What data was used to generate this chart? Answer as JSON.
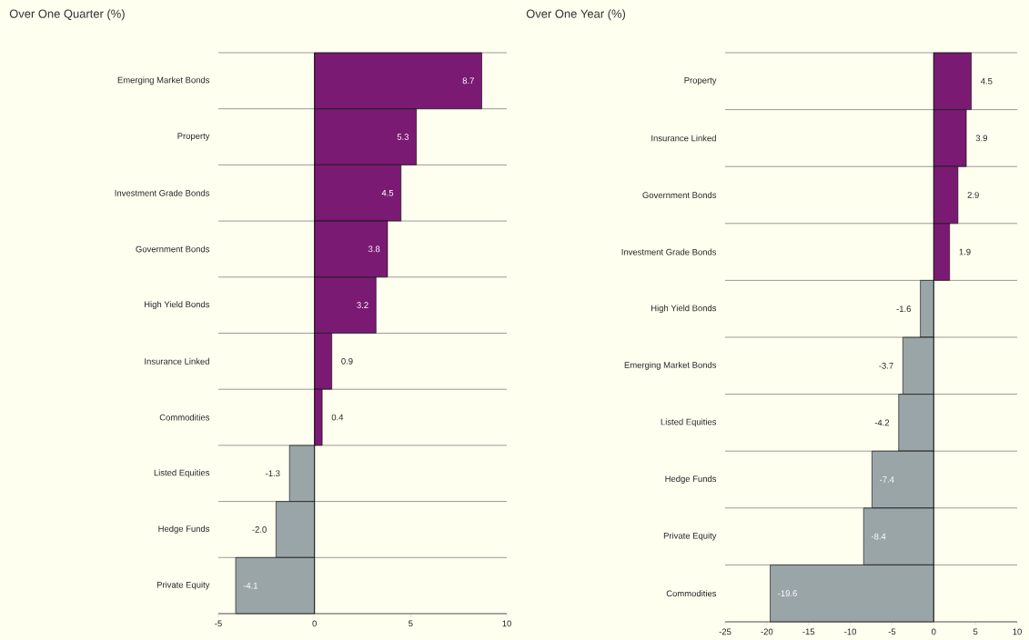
{
  "chart_data": [
    {
      "type": "bar",
      "orientation": "horizontal",
      "title": "Over One Quarter (%)",
      "categories": [
        "Emerging Market Bonds",
        "Property",
        "Investment Grade Bonds",
        "Government Bonds",
        "High Yield Bonds",
        "Insurance Linked",
        "Commodities",
        "Listed Equities",
        "Hedge Funds",
        "Private Equity"
      ],
      "values": [
        8.7,
        5.3,
        4.5,
        3.8,
        3.2,
        0.9,
        0.4,
        -1.3,
        -2.0,
        -4.1
      ],
      "value_labels": [
        "8.7",
        "5.3",
        "4.5",
        "3.8",
        "3.2",
        "0.9",
        "0.4",
        "-1.3",
        "-2.0",
        "-4.1"
      ],
      "colors": [
        "#7a1a73",
        "#7a1a73",
        "#7a1a73",
        "#7a1a73",
        "#7a1a73",
        "#7a1a73",
        "#7a1a73",
        "#9aa5a8",
        "#9aa5a8",
        "#9aa5a8"
      ],
      "xlim": [
        -5,
        10
      ],
      "xticks": [
        -5,
        0,
        5,
        10
      ],
      "grid": "y"
    },
    {
      "type": "bar",
      "orientation": "horizontal",
      "title": "Over One Year (%)",
      "categories": [
        "Property",
        "Insurance Linked",
        "Government Bonds",
        "Investment Grade Bonds",
        "High Yield Bonds",
        "Emerging Market Bonds",
        "Listed Equities",
        "Hedge Funds",
        "Private Equity",
        "Commodities"
      ],
      "values": [
        4.5,
        3.9,
        2.9,
        1.9,
        -1.6,
        -3.7,
        -4.2,
        -7.4,
        -8.4,
        -19.6
      ],
      "value_labels": [
        "4.5",
        "3.9",
        "2.9",
        "1.9",
        "-1.6",
        "-3.7",
        "-4.2",
        "-7.4",
        "-8.4",
        "-19.6"
      ],
      "colors": [
        "#7a1a73",
        "#7a1a73",
        "#7a1a73",
        "#7a1a73",
        "#9aa5a8",
        "#9aa5a8",
        "#9aa5a8",
        "#9aa5a8",
        "#9aa5a8",
        "#9aa5a8"
      ],
      "xlim": [
        -25,
        10
      ],
      "xticks": [
        -25,
        -20,
        -15,
        -10,
        -5,
        0,
        5,
        10
      ],
      "grid": "y"
    }
  ]
}
